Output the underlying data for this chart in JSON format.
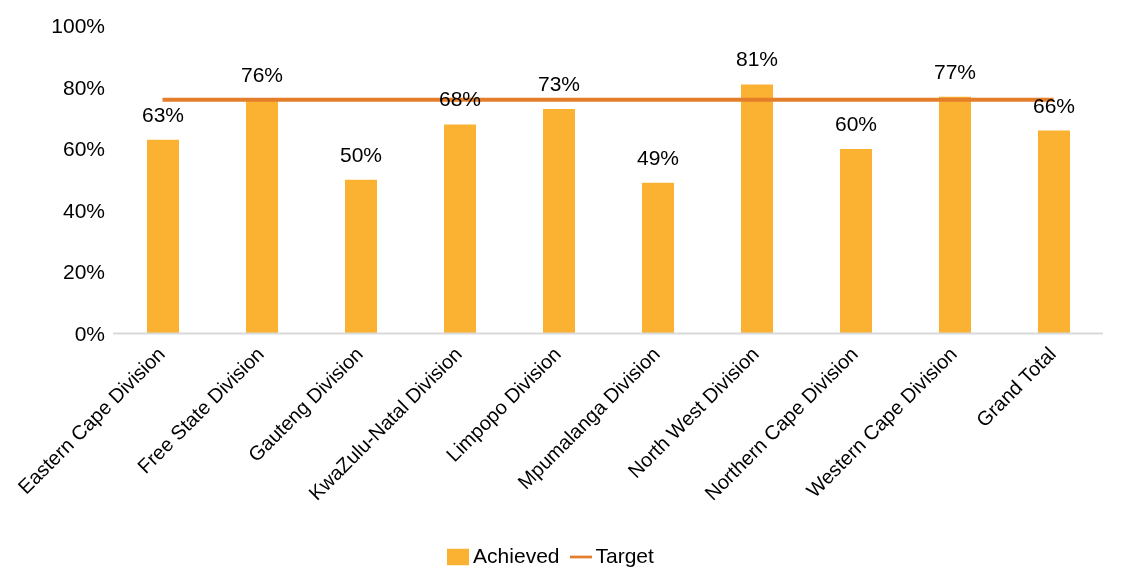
{
  "chart_data": {
    "type": "bar",
    "categories": [
      "Eastern Cape Division",
      "Free State Division",
      "Gauteng Division",
      "KwaZulu-Natal Division",
      "Limpopo Division",
      "Mpumalanga Division",
      "North West Division",
      "Northern Cape Division",
      "Western Cape Division",
      "Grand Total"
    ],
    "series": [
      {
        "name": "Achieved",
        "color": "#fbb233",
        "values": [
          63,
          76,
          50,
          68,
          73,
          49,
          81,
          60,
          77,
          66
        ],
        "value_labels": [
          "63%",
          "76%",
          "50%",
          "68%",
          "73%",
          "49%",
          "81%",
          "60%",
          "77%",
          "66%"
        ]
      },
      {
        "name": "Target",
        "type": "line",
        "color": "#e47e2a",
        "values": [
          76,
          76,
          76,
          76,
          76,
          76,
          76,
          76,
          76,
          76
        ]
      }
    ],
    "ylim": [
      0,
      100
    ],
    "yticks": [
      {
        "value": 0,
        "label": "0%"
      },
      {
        "value": 20,
        "label": "20%"
      },
      {
        "value": 40,
        "label": "40%"
      },
      {
        "value": 60,
        "label": "60%"
      },
      {
        "value": 80,
        "label": "80%"
      },
      {
        "value": 100,
        "label": "100%"
      }
    ],
    "grid": false,
    "legend": "bottom",
    "marker": "none"
  }
}
